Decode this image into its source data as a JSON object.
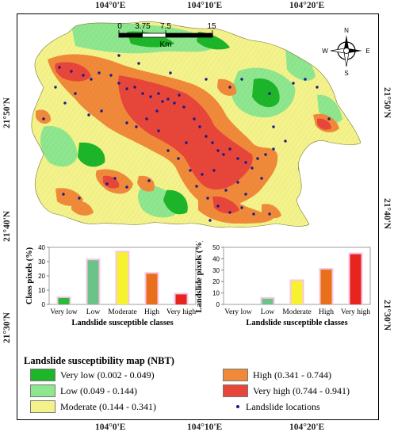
{
  "axes": {
    "top": [
      "104°0'E",
      "104°10'E",
      "104°20'E"
    ],
    "bottom": [
      "104°0'E",
      "104°10'E",
      "104°20'E"
    ],
    "left": [
      "21°50'N",
      "21°40'N",
      "21°30'N"
    ],
    "right": [
      "21°50'N",
      "21°40'N",
      "21°30'N"
    ]
  },
  "scalebar": {
    "ticks": [
      "0",
      "3.75",
      "7.5",
      "15"
    ],
    "unit": "Km"
  },
  "compass": {
    "n": "N",
    "s": "S",
    "e": "E",
    "w": "W"
  },
  "colors": {
    "very_low": "#1db52a",
    "low": "#8ee68e",
    "moderate": "#f4f28a",
    "high": "#f08a3a",
    "very_high": "#e8463a",
    "landslide": "#1a1a8a"
  },
  "chart_data": [
    {
      "type": "bar",
      "categories": [
        "Very low",
        "Low",
        "Moderate",
        "High",
        "Very high"
      ],
      "values": [
        4.5,
        31,
        36.5,
        21.5,
        7
      ],
      "xlabel": "Landslide susceptible classes",
      "ylabel": "Class pixels (%)",
      "ylim": [
        0,
        40
      ],
      "yticks": [
        0,
        10,
        20,
        30,
        40
      ],
      "bar_colors": [
        "#2dba3a",
        "#6cc38a",
        "#f6f230",
        "#e8701a",
        "#e8241e"
      ]
    },
    {
      "type": "bar",
      "categories": [
        "Very low",
        "Low",
        "Moderate",
        "High",
        "Very high"
      ],
      "values": [
        0,
        5,
        20.5,
        30.5,
        44
      ],
      "xlabel": "Landslide susceptible classes",
      "ylabel": "Landslide pixels (%)",
      "ylim": [
        0,
        50
      ],
      "yticks": [
        0,
        10,
        20,
        30,
        40,
        50
      ],
      "bar_colors": [
        "#2dba3a",
        "#6cc38a",
        "#f6f230",
        "#e8701a",
        "#e8241e"
      ]
    }
  ],
  "legend": {
    "title": "Landslide susceptibility map (NBT)",
    "items": [
      {
        "label": "Very low (0.002 - 0.049)",
        "color": "#1db52a"
      },
      {
        "label": "Low (0.049 - 0.144)",
        "color": "#8ee68e"
      },
      {
        "label": "Moderate (0.144 - 0.341)",
        "color": "#f4f28a"
      },
      {
        "label": "High (0.341 - 0.744)",
        "color": "#f08a3a"
      },
      {
        "label": "Very high (0.744 - 0.941)",
        "color": "#e8463a"
      }
    ],
    "points_label": "Landslide locations"
  }
}
